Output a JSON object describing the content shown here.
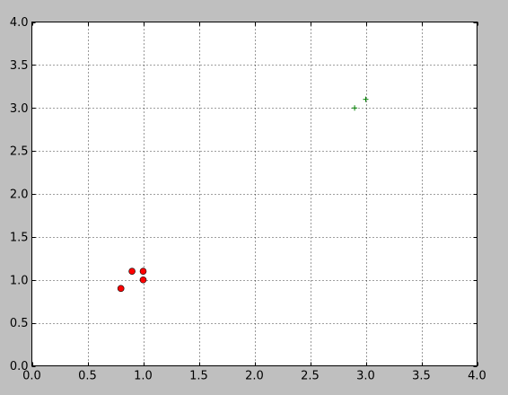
{
  "chart_data": {
    "type": "scatter",
    "xlim": [
      0.0,
      4.0
    ],
    "ylim": [
      0.0,
      4.0
    ],
    "x_ticks": [
      "0.0",
      "0.5",
      "1.0",
      "1.5",
      "2.0",
      "2.5",
      "3.0",
      "3.5",
      "4.0"
    ],
    "y_ticks": [
      "0.0",
      "0.5",
      "1.0",
      "1.5",
      "2.0",
      "2.5",
      "3.0",
      "3.5",
      "4.0"
    ],
    "grid": true,
    "series": [
      {
        "marker": "circle",
        "color": "#ff0000",
        "points": [
          [
            0.8,
            0.9
          ],
          [
            0.9,
            1.1
          ],
          [
            1.0,
            1.1
          ],
          [
            1.0,
            1.0
          ]
        ]
      },
      {
        "marker": "plus",
        "color": "#008000",
        "points": [
          [
            2.9,
            3.0
          ],
          [
            3.0,
            3.1
          ]
        ]
      }
    ]
  },
  "colors": {
    "figure_background": "#bfbfbf",
    "axes_background": "#ffffff",
    "grid": "#000000"
  }
}
